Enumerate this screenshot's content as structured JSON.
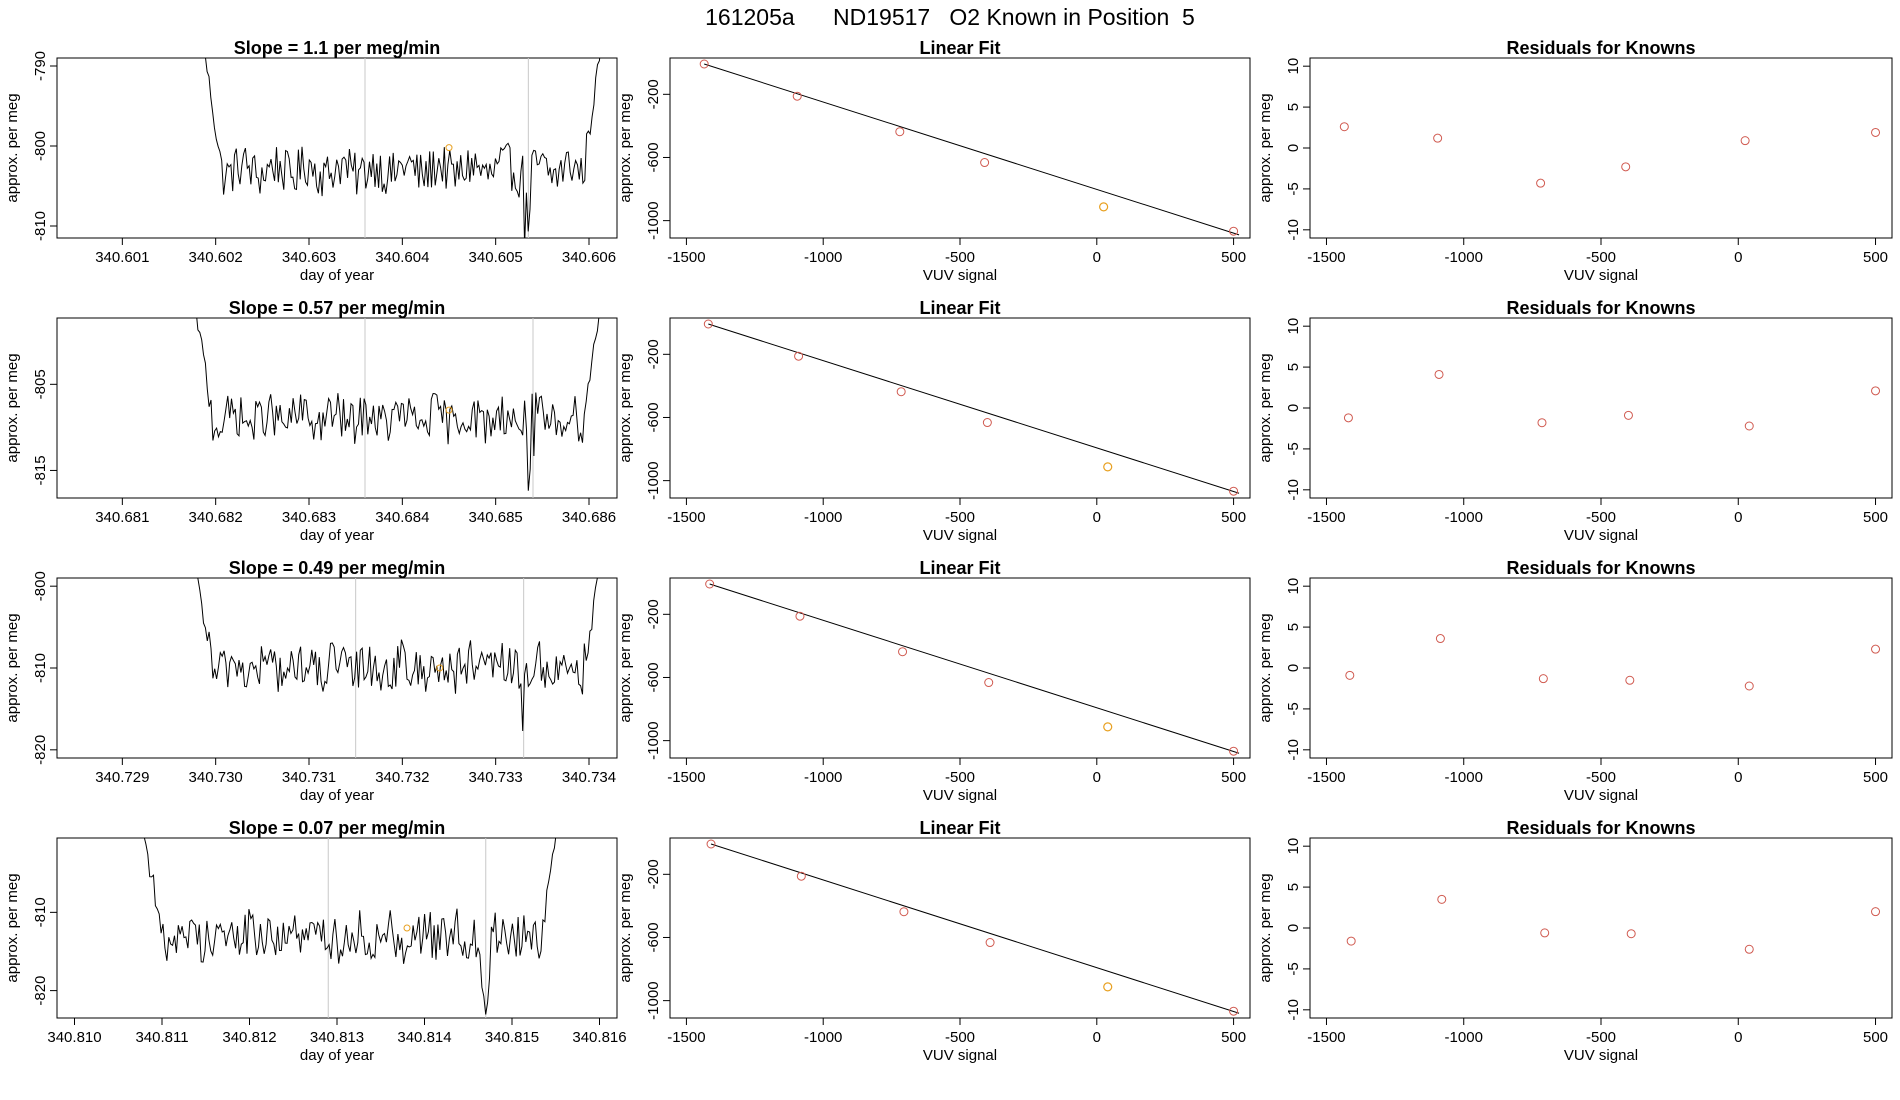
{
  "page": {
    "title": "161205a      ND19517   O2 Known in Position  5"
  },
  "colors": {
    "ink": "#000000",
    "residual": "#d05a50",
    "unknown": "#e8a020",
    "bracket": "#c8c8c8"
  },
  "chart_data": [
    {
      "type": "line",
      "panel": "timeseries",
      "row": 0,
      "title": "Slope =  1.1  per meg/min",
      "xlabel": "day of year",
      "ylabel": "approx. per meg",
      "xlim": [
        340.6003,
        340.6063
      ],
      "ylim": [
        -811.5,
        -789.0
      ],
      "xticks": [
        340.601,
        340.602,
        340.603,
        340.604,
        340.605,
        340.606
      ],
      "xtick_labels": [
        "340.601",
        "340.602",
        "340.603",
        "340.604",
        "340.605",
        "340.606"
      ],
      "yticks": [
        -810,
        -800,
        -790
      ],
      "ytick_labels": [
        "-810",
        "-800",
        "-790"
      ],
      "x_start": 340.60185,
      "x_end": 340.60615,
      "y_base": -803,
      "y_amp": 2.8,
      "vlines": [
        340.6036,
        340.60535
      ],
      "unknown_point": [
        340.6045,
        -800.2
      ]
    },
    {
      "type": "scatter",
      "panel": "linear_fit",
      "row": 0,
      "title": "Linear Fit",
      "xlabel": "VUV signal",
      "ylabel": "approx. per meg",
      "xlim": [
        -1560,
        560
      ],
      "ylim": [
        -1110,
        30
      ],
      "xticks": [
        -1500,
        -1000,
        -500,
        0,
        500
      ],
      "xtick_labels": [
        "-1500",
        "-1000",
        "-500",
        "0",
        "500"
      ],
      "yticks": [
        -1000,
        -600,
        -200
      ],
      "ytick_labels": [
        "-1000",
        "-600",
        "-200"
      ],
      "points": [
        [
          -1435,
          -8
        ],
        [
          -1095,
          -212
        ],
        [
          -720,
          -437
        ],
        [
          -410,
          -632
        ],
        [
          500,
          -1067
        ]
      ],
      "unknown_point": [
        25,
        -913
      ],
      "fit_line": [
        [
          -1435,
          -8
        ],
        [
          520,
          -1090
        ]
      ]
    },
    {
      "type": "scatter",
      "panel": "residuals",
      "row": 0,
      "title": "Residuals for Knowns",
      "xlabel": "VUV signal",
      "ylabel": "approx. per meg",
      "xlim": [
        -1560,
        560
      ],
      "ylim": [
        -11,
        11
      ],
      "xticks": [
        -1500,
        -1000,
        -500,
        0,
        500
      ],
      "xtick_labels": [
        "-1500",
        "-1000",
        "-500",
        "0",
        "500"
      ],
      "yticks": [
        -10,
        -5,
        0,
        5,
        10
      ],
      "ytick_labels": [
        "-10",
        "-5",
        "0",
        "5",
        "10"
      ],
      "points": [
        [
          -1435,
          2.6
        ],
        [
          -1095,
          1.2
        ],
        [
          -720,
          -4.3
        ],
        [
          -410,
          -2.3
        ],
        [
          25,
          0.9
        ],
        [
          500,
          1.9
        ]
      ]
    },
    {
      "type": "line",
      "panel": "timeseries",
      "row": 1,
      "title": "Slope =  0.57  per meg/min",
      "xlabel": "day of year",
      "ylabel": "approx. per meg",
      "xlim": [
        340.6803,
        340.6863
      ],
      "ylim": [
        -818.2,
        -797.3
      ],
      "xticks": [
        340.681,
        340.682,
        340.683,
        340.684,
        340.685,
        340.686
      ],
      "xtick_labels": [
        "340.681",
        "340.682",
        "340.683",
        "340.684",
        "340.685",
        "340.686"
      ],
      "yticks": [
        -815,
        -805
      ],
      "ytick_labels": [
        "-815",
        "-805"
      ],
      "x_start": 340.68175,
      "x_end": 340.68615,
      "y_base": -809,
      "y_amp": 2.5,
      "vlines": [
        340.6836,
        340.6854
      ],
      "unknown_point": [
        340.6845,
        -808.0
      ]
    },
    {
      "type": "scatter",
      "panel": "linear_fit",
      "row": 1,
      "title": "Linear Fit",
      "xlabel": "VUV signal",
      "ylabel": "approx. per meg",
      "xlim": [
        -1560,
        560
      ],
      "ylim": [
        -1110,
        30
      ],
      "xticks": [
        -1500,
        -1000,
        -500,
        0,
        500
      ],
      "xtick_labels": [
        "-1500",
        "-1000",
        "-500",
        "0",
        "500"
      ],
      "yticks": [
        -1000,
        -600,
        -200
      ],
      "ytick_labels": [
        "-1000",
        "-600",
        "-200"
      ],
      "points": [
        [
          -1420,
          -8
        ],
        [
          -1090,
          -212
        ],
        [
          -715,
          -437
        ],
        [
          -400,
          -632
        ],
        [
          500,
          -1067
        ]
      ],
      "unknown_point": [
        40,
        -913
      ],
      "fit_line": [
        [
          -1420,
          -8
        ],
        [
          520,
          -1080
        ]
      ]
    },
    {
      "type": "scatter",
      "panel": "residuals",
      "row": 1,
      "title": "Residuals for Knowns",
      "xlabel": "VUV signal",
      "ylabel": "approx. per meg",
      "xlim": [
        -1560,
        560
      ],
      "ylim": [
        -11,
        11
      ],
      "xticks": [
        -1500,
        -1000,
        -500,
        0,
        500
      ],
      "xtick_labels": [
        "-1500",
        "-1000",
        "-500",
        "0",
        "500"
      ],
      "yticks": [
        -10,
        -5,
        0,
        5,
        10
      ],
      "ytick_labels": [
        "-10",
        "-5",
        "0",
        "5",
        "10"
      ],
      "points": [
        [
          -1420,
          -1.2
        ],
        [
          -1090,
          4.1
        ],
        [
          -715,
          -1.8
        ],
        [
          -400,
          -0.9
        ],
        [
          40,
          -2.2
        ],
        [
          500,
          2.1
        ]
      ]
    },
    {
      "type": "line",
      "panel": "timeseries",
      "row": 2,
      "title": "Slope =  0.49  per meg/min",
      "xlabel": "day of year",
      "ylabel": "approx. per meg",
      "xlim": [
        340.7283,
        340.7343
      ],
      "ylim": [
        -821.0,
        -799.0
      ],
      "xticks": [
        340.729,
        340.73,
        340.731,
        340.732,
        340.733,
        340.734
      ],
      "xtick_labels": [
        "340.729",
        "340.730",
        "340.731",
        "340.732",
        "340.733",
        "340.734"
      ],
      "yticks": [
        -820,
        -810,
        -800
      ],
      "ytick_labels": [
        "-820",
        "-810",
        "-800"
      ],
      "x_start": 340.72975,
      "x_end": 340.73415,
      "y_base": -810,
      "y_amp": 2.8,
      "vlines": [
        340.7315,
        340.7333
      ],
      "unknown_point": [
        340.7324,
        -810.0
      ]
    },
    {
      "type": "scatter",
      "panel": "linear_fit",
      "row": 2,
      "title": "Linear Fit",
      "xlabel": "VUV signal",
      "ylabel": "approx. per meg",
      "xlim": [
        -1560,
        560
      ],
      "ylim": [
        -1110,
        30
      ],
      "xticks": [
        -1500,
        -1000,
        -500,
        0,
        500
      ],
      "xtick_labels": [
        "-1500",
        "-1000",
        "-500",
        "0",
        "500"
      ],
      "yticks": [
        -1000,
        -600,
        -200
      ],
      "ytick_labels": [
        "-1000",
        "-600",
        "-200"
      ],
      "points": [
        [
          -1415,
          -8
        ],
        [
          -1085,
          -212
        ],
        [
          -710,
          -437
        ],
        [
          -395,
          -632
        ],
        [
          500,
          -1067
        ]
      ],
      "unknown_point": [
        40,
        -913
      ],
      "fit_line": [
        [
          -1415,
          -8
        ],
        [
          520,
          -1080
        ]
      ]
    },
    {
      "type": "scatter",
      "panel": "residuals",
      "row": 2,
      "title": "Residuals for Knowns",
      "xlabel": "VUV signal",
      "ylabel": "approx. per meg",
      "xlim": [
        -1560,
        560
      ],
      "ylim": [
        -11,
        11
      ],
      "xticks": [
        -1500,
        -1000,
        -500,
        0,
        500
      ],
      "xtick_labels": [
        "-1500",
        "-1000",
        "-500",
        "0",
        "500"
      ],
      "yticks": [
        -10,
        -5,
        0,
        5,
        10
      ],
      "ytick_labels": [
        "-10",
        "-5",
        "0",
        "5",
        "10"
      ],
      "points": [
        [
          -1415,
          -0.9
        ],
        [
          -1085,
          3.6
        ],
        [
          -710,
          -1.3
        ],
        [
          -395,
          -1.5
        ],
        [
          40,
          -2.2
        ],
        [
          500,
          2.3
        ]
      ]
    },
    {
      "type": "line",
      "panel": "timeseries",
      "row": 3,
      "title": "Slope =  0.07  per meg/min",
      "xlabel": "day of year",
      "ylabel": "approx. per meg",
      "xlim": [
        340.8098,
        340.8162
      ],
      "ylim": [
        -823.5,
        -800.5
      ],
      "xticks": [
        340.81,
        340.811,
        340.812,
        340.813,
        340.814,
        340.815,
        340.816
      ],
      "xtick_labels": [
        "340.810",
        "340.811",
        "340.812",
        "340.813",
        "340.814",
        "340.815",
        "340.816"
      ],
      "yticks": [
        -820,
        -810
      ],
      "ytick_labels": [
        "-820",
        "-810"
      ],
      "x_start": 340.81075,
      "x_end": 340.81555,
      "y_base": -813,
      "y_amp": 3.0,
      "vlines": [
        340.8129,
        340.8147
      ],
      "unknown_point": [
        340.8138,
        -812.0
      ]
    },
    {
      "type": "scatter",
      "panel": "linear_fit",
      "row": 3,
      "title": "Linear Fit",
      "xlabel": "VUV signal",
      "ylabel": "approx. per meg",
      "xlim": [
        -1560,
        560
      ],
      "ylim": [
        -1110,
        30
      ],
      "xticks": [
        -1500,
        -1000,
        -500,
        0,
        500
      ],
      "xtick_labels": [
        "-1500",
        "-1000",
        "-500",
        "0",
        "500"
      ],
      "yticks": [
        -1000,
        -600,
        -200
      ],
      "ytick_labels": [
        "-1000",
        "-600",
        "-200"
      ],
      "points": [
        [
          -1410,
          -8
        ],
        [
          -1080,
          -212
        ],
        [
          -705,
          -437
        ],
        [
          -390,
          -632
        ],
        [
          500,
          -1067
        ]
      ],
      "unknown_point": [
        40,
        -913
      ],
      "fit_line": [
        [
          -1410,
          -8
        ],
        [
          520,
          -1080
        ]
      ]
    },
    {
      "type": "scatter",
      "panel": "residuals",
      "row": 3,
      "title": "Residuals for Knowns",
      "xlabel": "VUV signal",
      "ylabel": "approx. per meg",
      "xlim": [
        -1560,
        560
      ],
      "ylim": [
        -11,
        11
      ],
      "xticks": [
        -1500,
        -1000,
        -500,
        0,
        500
      ],
      "xtick_labels": [
        "-1500",
        "-1000",
        "-500",
        "0",
        "500"
      ],
      "yticks": [
        -10,
        -5,
        0,
        5,
        10
      ],
      "ytick_labels": [
        "-10",
        "-5",
        "0",
        "5",
        "10"
      ],
      "points": [
        [
          -1410,
          -1.6
        ],
        [
          -1080,
          3.5
        ],
        [
          -705,
          -0.6
        ],
        [
          -390,
          -0.7
        ],
        [
          40,
          -2.6
        ],
        [
          500,
          2.0
        ]
      ]
    }
  ]
}
